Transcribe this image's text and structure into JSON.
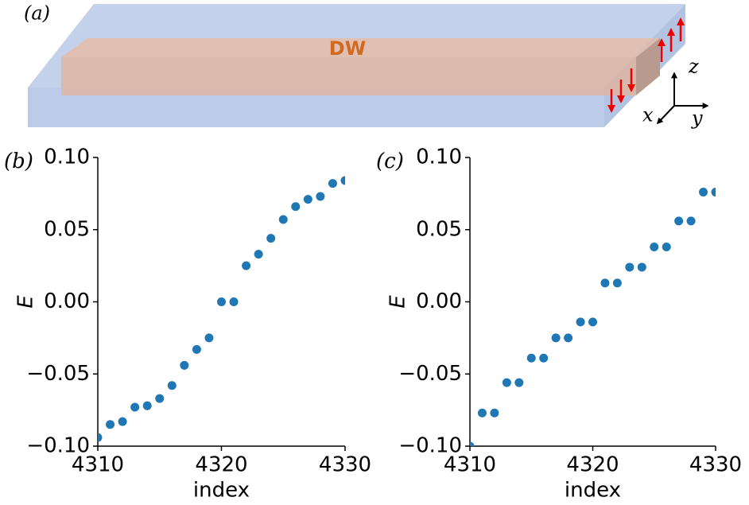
{
  "diagram": {
    "label": "(a)",
    "wall": "DW",
    "axes": {
      "z": "z",
      "x": "x",
      "y": "y"
    }
  },
  "chart_data": [
    {
      "type": "scatter",
      "title": "(b)",
      "xlabel": "index",
      "ylabel": "E",
      "color": "#1f77b4",
      "x": [
        4310,
        4311,
        4312,
        4313,
        4314,
        4315,
        4316,
        4317,
        4318,
        4319,
        4320,
        4321,
        4322,
        4323,
        4324,
        4325,
        4326,
        4327,
        4328,
        4329,
        4330
      ],
      "values": [
        -0.094,
        -0.085,
        -0.083,
        -0.073,
        -0.072,
        -0.067,
        -0.058,
        -0.044,
        -0.033,
        -0.025,
        0,
        0,
        0.025,
        0.033,
        0.044,
        0.057,
        0.066,
        0.071,
        0.073,
        0.082,
        0.084
      ],
      "xlim": [
        4310,
        4330
      ],
      "ylim": [
        -0.1,
        0.1
      ],
      "xticks": [
        4310,
        4320,
        4330
      ],
      "yticks": [
        {
          "value": 0.1,
          "label": "0.10"
        },
        {
          "value": 0.05,
          "label": "0.05"
        },
        {
          "value": 0,
          "label": "0.00"
        },
        {
          "value": -0.05,
          "label": "−0.05"
        },
        {
          "value": -0.1,
          "label": "−0.10"
        }
      ]
    },
    {
      "type": "scatter",
      "title": "(c)",
      "xlabel": "index",
      "ylabel": "E",
      "color": "#1f77b4",
      "x": [
        4310,
        4311,
        4312,
        4313,
        4314,
        4315,
        4316,
        4317,
        4318,
        4319,
        4320,
        4321,
        4322,
        4323,
        4324,
        4325,
        4326,
        4327,
        4328,
        4329,
        4330
      ],
      "values": [
        -0.1,
        -0.077,
        -0.077,
        -0.056,
        -0.056,
        -0.039,
        -0.039,
        -0.025,
        -0.025,
        -0.014,
        -0.014,
        0.013,
        0.013,
        0.024,
        0.024,
        0.038,
        0.038,
        0.056,
        0.056,
        0.076,
        0.076
      ],
      "xlim": [
        4310,
        4330
      ],
      "ylim": [
        -0.1,
        0.1
      ],
      "xticks": [
        4310,
        4320,
        4330
      ],
      "yticks": [
        {
          "value": 0.1,
          "label": "0.10"
        },
        {
          "value": 0.05,
          "label": "0.05"
        },
        {
          "value": 0,
          "label": "0.00"
        },
        {
          "value": -0.05,
          "label": "−0.05"
        },
        {
          "value": -0.1,
          "label": "−0.10"
        }
      ]
    }
  ]
}
